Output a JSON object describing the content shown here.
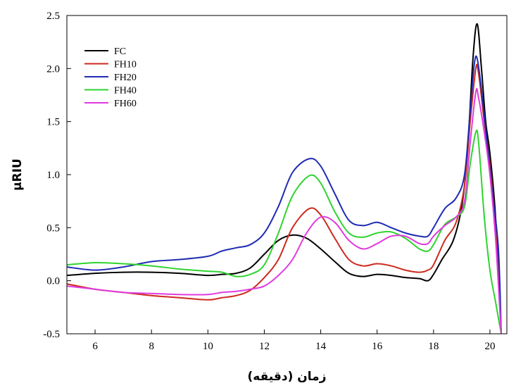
{
  "chart_data": {
    "type": "line",
    "title": "",
    "xlabel": "زمان (دقیقه)",
    "ylabel": "µRIU",
    "xlim": [
      5,
      20.6
    ],
    "ylim": [
      -0.5,
      2.5
    ],
    "x_ticks": [
      "6",
      "8",
      "10",
      "12",
      "14",
      "16",
      "18",
      "20"
    ],
    "y_ticks": [
      "2.5",
      "2.0",
      "1.5",
      "1.0",
      "0.5",
      "0.0",
      "-0.5"
    ],
    "grid": false,
    "legend_position": "top-left",
    "series": [
      {
        "name": "FC",
        "color": "#000000",
        "points": [
          [
            5,
            0.05
          ],
          [
            6,
            0.07
          ],
          [
            7,
            0.08
          ],
          [
            8,
            0.08
          ],
          [
            9,
            0.07
          ],
          [
            10,
            0.05
          ],
          [
            10.5,
            0.06
          ],
          [
            11,
            0.07
          ],
          [
            11.5,
            0.12
          ],
          [
            12,
            0.25
          ],
          [
            12.5,
            0.38
          ],
          [
            13,
            0.43
          ],
          [
            13.5,
            0.4
          ],
          [
            14,
            0.3
          ],
          [
            14.5,
            0.18
          ],
          [
            15,
            0.07
          ],
          [
            15.5,
            0.04
          ],
          [
            16,
            0.06
          ],
          [
            16.5,
            0.05
          ],
          [
            17,
            0.03
          ],
          [
            17.5,
            0.02
          ],
          [
            17.8,
            0.0
          ],
          [
            18,
            0.06
          ],
          [
            18.3,
            0.2
          ],
          [
            18.7,
            0.38
          ],
          [
            19,
            0.7
          ],
          [
            19.2,
            1.2
          ],
          [
            19.4,
            2.1
          ],
          [
            19.55,
            2.42
          ],
          [
            19.7,
            2.0
          ],
          [
            19.85,
            1.5
          ],
          [
            20,
            1.2
          ],
          [
            20.2,
            0.6
          ],
          [
            20.4,
            -0.5
          ]
        ]
      },
      {
        "name": "FH10",
        "color": "#cc2a1e",
        "points": [
          [
            5,
            -0.03
          ],
          [
            6,
            -0.08
          ],
          [
            7,
            -0.11
          ],
          [
            8,
            -0.14
          ],
          [
            9,
            -0.16
          ],
          [
            10,
            -0.18
          ],
          [
            10.5,
            -0.16
          ],
          [
            11,
            -0.14
          ],
          [
            11.5,
            -0.09
          ],
          [
            12,
            0.03
          ],
          [
            12.5,
            0.2
          ],
          [
            13,
            0.5
          ],
          [
            13.6,
            0.68
          ],
          [
            14,
            0.62
          ],
          [
            14.5,
            0.4
          ],
          [
            15,
            0.2
          ],
          [
            15.5,
            0.14
          ],
          [
            16,
            0.16
          ],
          [
            16.5,
            0.14
          ],
          [
            17,
            0.1
          ],
          [
            17.5,
            0.08
          ],
          [
            17.8,
            0.1
          ],
          [
            18,
            0.15
          ],
          [
            18.4,
            0.38
          ],
          [
            18.8,
            0.55
          ],
          [
            19.1,
            0.9
          ],
          [
            19.3,
            1.5
          ],
          [
            19.5,
            2.0
          ],
          [
            19.6,
            1.95
          ],
          [
            19.8,
            1.5
          ],
          [
            20,
            1.1
          ],
          [
            20.2,
            0.5
          ],
          [
            20.4,
            -0.5
          ]
        ]
      },
      {
        "name": "FH20",
        "color": "#1f2bb3",
        "points": [
          [
            5,
            0.13
          ],
          [
            6,
            0.1
          ],
          [
            7,
            0.13
          ],
          [
            8,
            0.18
          ],
          [
            9,
            0.2
          ],
          [
            10,
            0.23
          ],
          [
            10.5,
            0.28
          ],
          [
            11,
            0.31
          ],
          [
            11.5,
            0.34
          ],
          [
            12,
            0.45
          ],
          [
            12.5,
            0.7
          ],
          [
            13,
            1.02
          ],
          [
            13.6,
            1.15
          ],
          [
            14,
            1.08
          ],
          [
            14.5,
            0.82
          ],
          [
            15,
            0.57
          ],
          [
            15.5,
            0.52
          ],
          [
            16,
            0.55
          ],
          [
            16.5,
            0.5
          ],
          [
            17,
            0.45
          ],
          [
            17.5,
            0.42
          ],
          [
            17.8,
            0.42
          ],
          [
            18,
            0.5
          ],
          [
            18.4,
            0.68
          ],
          [
            18.8,
            0.78
          ],
          [
            19.1,
            1.0
          ],
          [
            19.3,
            1.6
          ],
          [
            19.45,
            2.05
          ],
          [
            19.55,
            2.09
          ],
          [
            19.7,
            1.8
          ],
          [
            19.9,
            1.3
          ],
          [
            20.1,
            0.8
          ],
          [
            20.3,
            0.3
          ],
          [
            20.4,
            -0.5
          ]
        ]
      },
      {
        "name": "FH40",
        "color": "#2fd42f",
        "points": [
          [
            5,
            0.15
          ],
          [
            6,
            0.17
          ],
          [
            7,
            0.16
          ],
          [
            8,
            0.14
          ],
          [
            9,
            0.11
          ],
          [
            10,
            0.09
          ],
          [
            10.5,
            0.08
          ],
          [
            11,
            0.04
          ],
          [
            11.5,
            0.06
          ],
          [
            12,
            0.15
          ],
          [
            12.5,
            0.45
          ],
          [
            13,
            0.8
          ],
          [
            13.6,
            0.99
          ],
          [
            14,
            0.92
          ],
          [
            14.5,
            0.65
          ],
          [
            15,
            0.45
          ],
          [
            15.5,
            0.41
          ],
          [
            16,
            0.45
          ],
          [
            16.5,
            0.46
          ],
          [
            17,
            0.4
          ],
          [
            17.5,
            0.3
          ],
          [
            17.8,
            0.28
          ],
          [
            18,
            0.34
          ],
          [
            18.4,
            0.53
          ],
          [
            18.8,
            0.6
          ],
          [
            19.1,
            0.7
          ],
          [
            19.3,
            1.1
          ],
          [
            19.5,
            1.4
          ],
          [
            19.6,
            1.3
          ],
          [
            19.8,
            0.6
          ],
          [
            20,
            0.1
          ],
          [
            20.2,
            -0.2
          ],
          [
            20.4,
            -0.5
          ]
        ]
      },
      {
        "name": "FH60",
        "color": "#e03be0",
        "points": [
          [
            5,
            -0.05
          ],
          [
            6,
            -0.08
          ],
          [
            7,
            -0.11
          ],
          [
            8,
            -0.12
          ],
          [
            9,
            -0.13
          ],
          [
            10,
            -0.13
          ],
          [
            10.5,
            -0.11
          ],
          [
            11,
            -0.1
          ],
          [
            11.5,
            -0.08
          ],
          [
            12,
            -0.05
          ],
          [
            12.5,
            0.05
          ],
          [
            13,
            0.2
          ],
          [
            13.5,
            0.45
          ],
          [
            14,
            0.6
          ],
          [
            14.5,
            0.55
          ],
          [
            15,
            0.38
          ],
          [
            15.5,
            0.3
          ],
          [
            16,
            0.35
          ],
          [
            16.5,
            0.42
          ],
          [
            17,
            0.42
          ],
          [
            17.5,
            0.35
          ],
          [
            17.8,
            0.35
          ],
          [
            18,
            0.42
          ],
          [
            18.4,
            0.52
          ],
          [
            18.8,
            0.6
          ],
          [
            19.1,
            0.75
          ],
          [
            19.3,
            1.3
          ],
          [
            19.5,
            1.78
          ],
          [
            19.6,
            1.72
          ],
          [
            19.8,
            1.4
          ],
          [
            20,
            1.0
          ],
          [
            20.2,
            0.4
          ],
          [
            20.4,
            -0.5
          ]
        ]
      }
    ]
  }
}
